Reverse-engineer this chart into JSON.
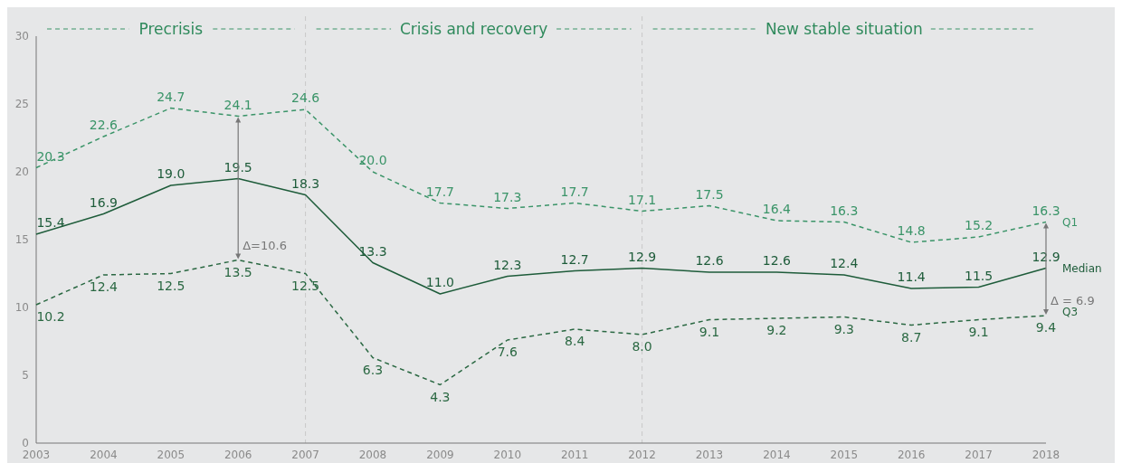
{
  "chart_data": {
    "type": "line",
    "categories": [
      "2003",
      "2004",
      "2005",
      "2006",
      "2007",
      "2008",
      "2009",
      "2010",
      "2011",
      "2012",
      "2013",
      "2014",
      "2015",
      "2016",
      "2017",
      "2018"
    ],
    "series": [
      {
        "name": "Q1",
        "color": "#3a9468",
        "line_style": "dashed",
        "values": [
          20.3,
          22.6,
          24.7,
          24.1,
          24.6,
          20.0,
          17.7,
          17.3,
          17.7,
          17.1,
          17.5,
          16.4,
          16.3,
          14.8,
          15.2,
          16.3
        ],
        "value_labels": [
          "20.3",
          "22.6",
          "24.7",
          "24.1",
          "24.6",
          "20.0",
          "17.7",
          "17.3",
          "17.7",
          "17.1",
          "17.5",
          "16.4",
          "16.3",
          "14.8",
          "15.2",
          "16.3"
        ]
      },
      {
        "name": "Median",
        "color": "#1e5c3a",
        "line_style": "solid",
        "values": [
          15.4,
          16.9,
          19.0,
          19.5,
          18.3,
          13.3,
          11.0,
          12.3,
          12.7,
          12.9,
          12.6,
          12.6,
          12.4,
          11.4,
          11.5,
          12.9
        ],
        "value_labels": [
          "15.4",
          "16.9",
          "19.0",
          "19.5",
          "18.3",
          "13.3",
          "11.0",
          "12.3",
          "12.7",
          "12.9",
          "12.6",
          "12.6",
          "12.4",
          "11.4",
          "11.5",
          "12.9"
        ]
      },
      {
        "name": "Q3",
        "color": "#2a6842",
        "line_style": "dashed",
        "values": [
          10.2,
          12.4,
          12.5,
          13.5,
          12.5,
          6.3,
          4.3,
          7.6,
          8.4,
          8.0,
          9.1,
          9.2,
          9.3,
          8.7,
          9.1,
          9.4
        ],
        "value_labels": [
          "10.2",
          "12.4",
          "12.5",
          "13.5",
          "12.5",
          "6.3",
          "4.3",
          "7.6",
          "8.4",
          "8.0",
          "9.1",
          "9.2",
          "9.3",
          "8.7",
          "9.1",
          "9.4"
        ]
      }
    ],
    "ylim": [
      0,
      30
    ],
    "yticks": [
      0,
      5,
      10,
      15,
      20,
      25,
      30
    ],
    "grid": false,
    "marker": "none",
    "ref_lines": [
      {
        "axis": "x",
        "value": "2007",
        "color": "#c8c8c8",
        "line_style": "dashed"
      },
      {
        "axis": "x",
        "value": "2012",
        "color": "#c8c8c8",
        "line_style": "dashed"
      }
    ],
    "annotations": [
      "Precrisis",
      "Crisis and recovery",
      "New stable situation",
      {
        "text": "Δ=10.6",
        "x": "2006",
        "y": 13.5
      },
      {
        "text": "Δ = 6.9",
        "x": "2018",
        "y": 9.4
      }
    ]
  }
}
